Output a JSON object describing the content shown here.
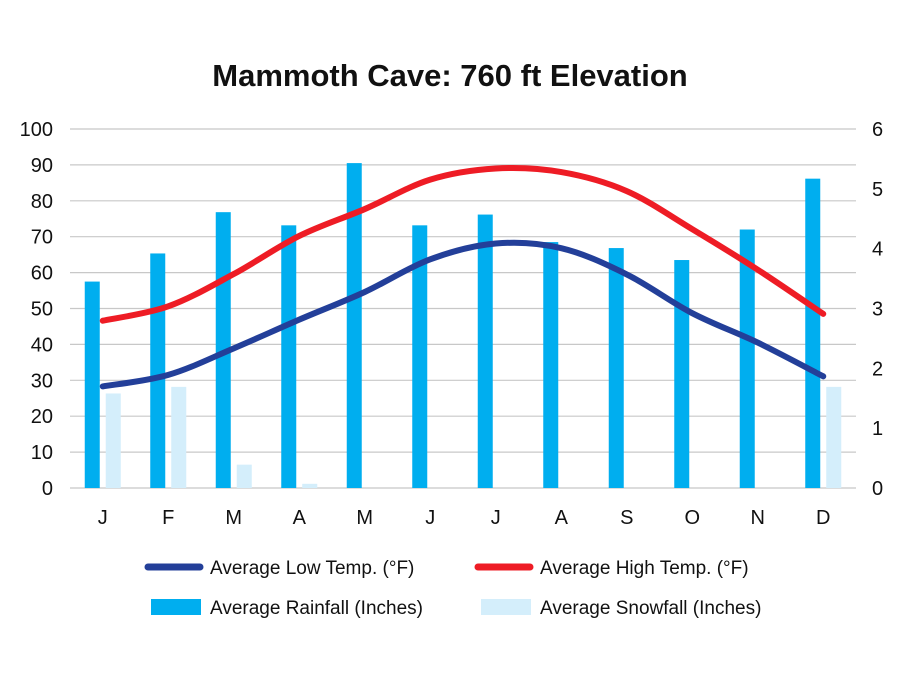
{
  "chart_data": {
    "type": "bar+line",
    "title": "Mammoth Cave: 760 ft Elevation",
    "categories": [
      "J",
      "F",
      "M",
      "A",
      "M",
      "J",
      "J",
      "A",
      "S",
      "O",
      "N",
      "D"
    ],
    "y_left": {
      "min": 0,
      "max": 100,
      "ticks": [
        "0",
        "10",
        "20",
        "30",
        "40",
        "50",
        "60",
        "70",
        "80",
        "90",
        "100"
      ]
    },
    "y_right": {
      "min": 0,
      "max": 6,
      "ticks": [
        "0",
        "1",
        "2",
        "3",
        "4",
        "5",
        "6"
      ]
    },
    "grid": true,
    "series": [
      {
        "name": "Average Rainfall (Inches)",
        "kind": "bar",
        "axis": "right",
        "color": "#00aeef",
        "values": [
          3.45,
          3.92,
          4.61,
          4.39,
          5.43,
          4.39,
          4.57,
          4.11,
          4.01,
          3.81,
          4.32,
          5.17
        ]
      },
      {
        "name": "Average Snowfall (Inches)",
        "kind": "bar",
        "axis": "right",
        "color": "#d4eefb",
        "values": [
          1.58,
          1.69,
          0.39,
          0.07,
          0,
          0,
          0,
          0,
          0,
          0,
          0,
          1.69
        ]
      },
      {
        "name": "Average Low Temp. (°F)",
        "kind": "line",
        "axis": "left",
        "color": "#233f99",
        "values": [
          28.3,
          31.5,
          38.9,
          46.9,
          54.6,
          63.7,
          68.1,
          66.8,
          59.5,
          48.7,
          40.5,
          31.1
        ]
      },
      {
        "name": "Average High Temp. (°F)",
        "kind": "line",
        "axis": "left",
        "color": "#ee1c25",
        "values": [
          46.6,
          50.6,
          59.6,
          70.2,
          77.7,
          85.9,
          89.0,
          88.0,
          82.7,
          72.1,
          60.8,
          48.5
        ]
      }
    ],
    "legend": [
      {
        "label": "Average Low Temp. (°F)",
        "symbol": "line",
        "color": "#233f99"
      },
      {
        "label": "Average High Temp. (°F)",
        "symbol": "line",
        "color": "#ee1c25"
      },
      {
        "label": "Average Rainfall (Inches)",
        "symbol": "bar",
        "color": "#00aeef"
      },
      {
        "label": "Average Snowfall (Inches)",
        "symbol": "bar",
        "color": "#d4eefb"
      }
    ],
    "legend_position": "bottom"
  }
}
